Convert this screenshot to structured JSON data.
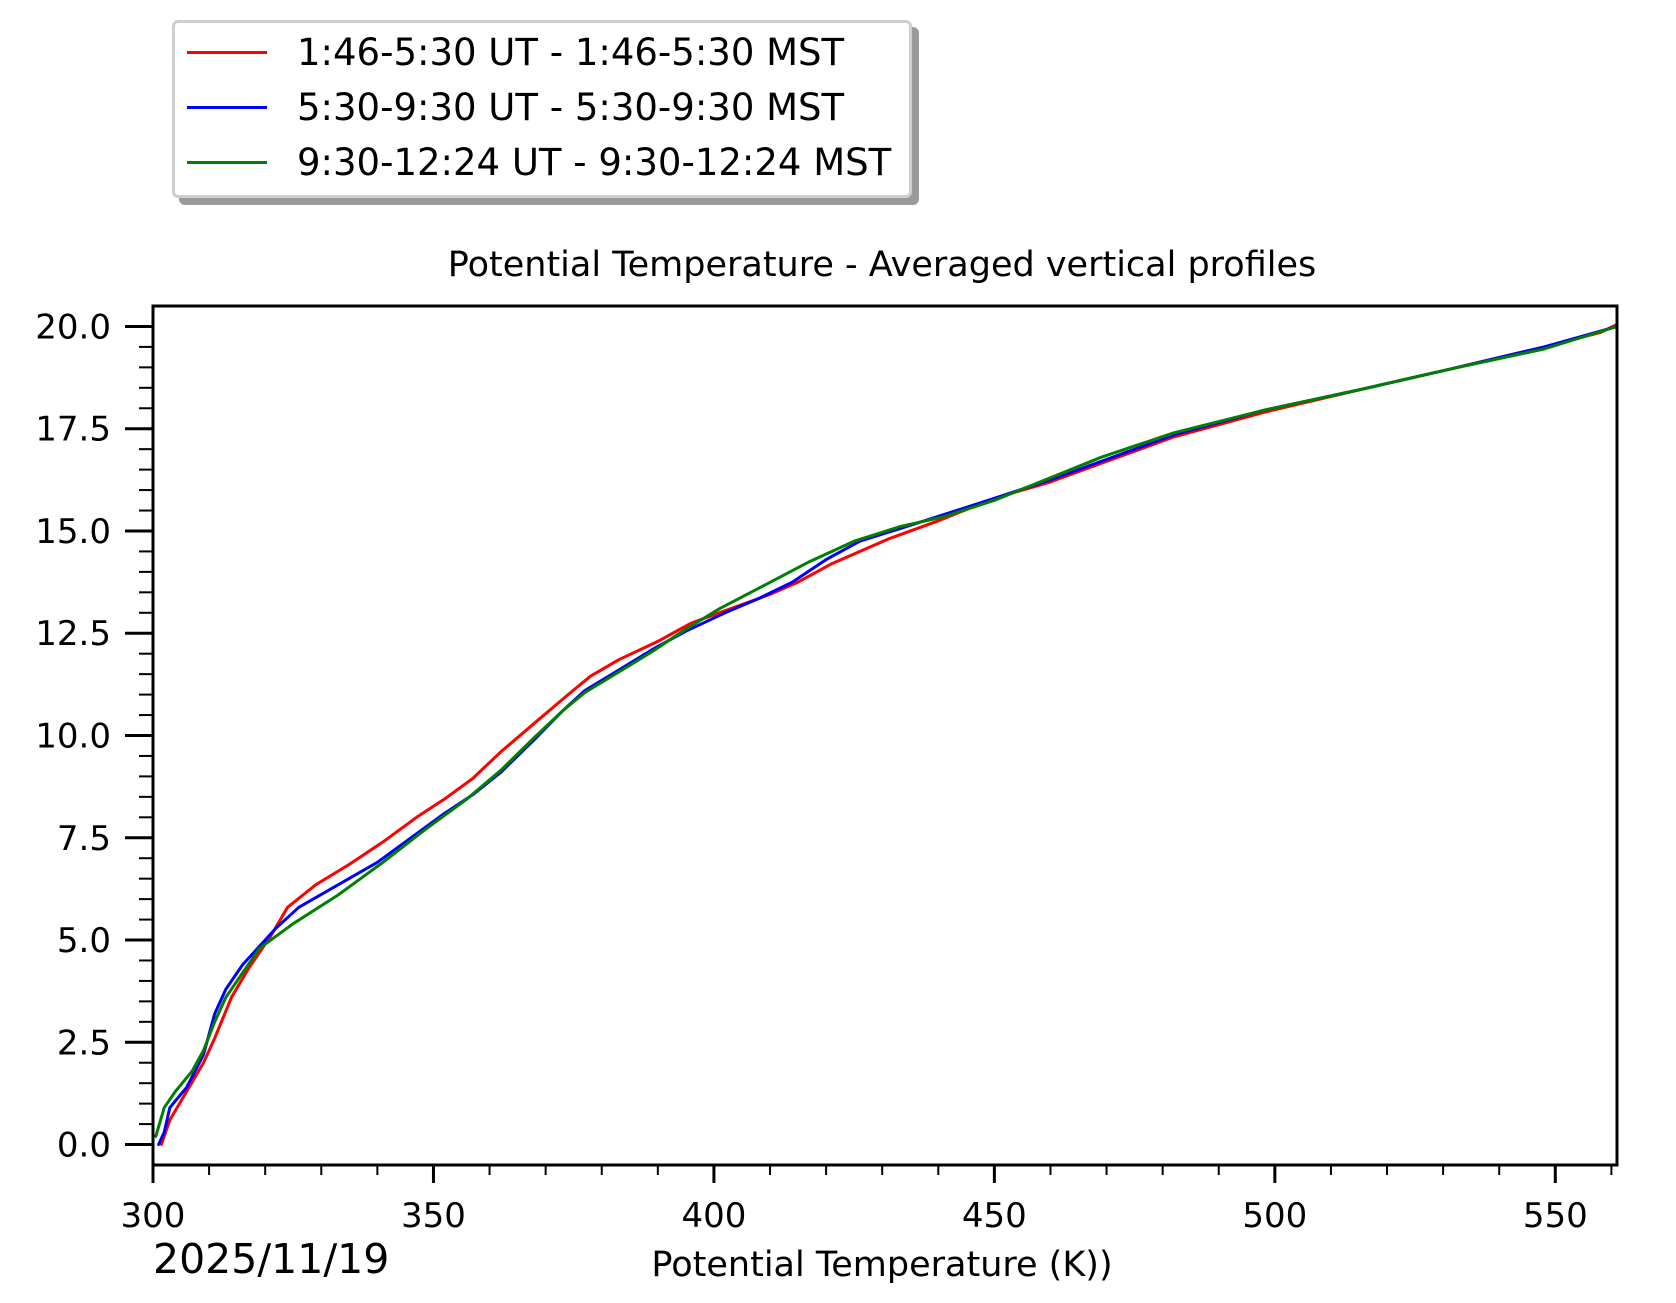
{
  "colors": {
    "series": [
      "#ff0000",
      "#0000ff",
      "#008000"
    ],
    "axes": "#000000",
    "background": "#ffffff"
  },
  "chart_data": {
    "type": "line",
    "title": "Potential Temperature - Averaged vertical profiles",
    "xlabel": "Potential Temperature (K))",
    "ylabel": "",
    "date": "2025/11/19",
    "xlim": [
      300,
      561
    ],
    "ylim": [
      -0.5,
      20.5
    ],
    "xticks": [
      300,
      350,
      400,
      450,
      500,
      550
    ],
    "xtick_labels": [
      "300",
      "350",
      "400",
      "450",
      "500",
      "550"
    ],
    "yticks": [
      0,
      2.5,
      5,
      7.5,
      10,
      12.5,
      15,
      17.5,
      20
    ],
    "ytick_labels": [
      "0.0",
      "2.5",
      "5.0",
      "7.5",
      "10.0",
      "12.5",
      "15.0",
      "17.5",
      "20.0"
    ],
    "grid": false,
    "legend_position": "top-left, above plot",
    "series": [
      {
        "name": "1:46-5:30 UT - 1:46-5:30 MST",
        "color": "#ff0000",
        "x": [
          301.5,
          303,
          306,
          309,
          311,
          314,
          317,
          321,
          324,
          329,
          335,
          341,
          347,
          352,
          357,
          362,
          368,
          374,
          378,
          383,
          390,
          396,
          402,
          410,
          415,
          421,
          431,
          440,
          450,
          460,
          470,
          482,
          498,
          515,
          531,
          548,
          558,
          561
        ],
        "y": [
          0.0,
          0.6,
          1.3,
          2.0,
          2.6,
          3.6,
          4.3,
          5.1,
          5.8,
          6.35,
          6.85,
          7.4,
          8.0,
          8.45,
          8.95,
          9.6,
          10.3,
          11.0,
          11.45,
          11.85,
          12.3,
          12.75,
          13.05,
          13.45,
          13.75,
          14.2,
          14.8,
          15.25,
          15.8,
          16.2,
          16.7,
          17.3,
          17.9,
          18.45,
          18.95,
          19.5,
          19.85,
          20.05
        ]
      },
      {
        "name": "5:30-9:30 UT - 5:30-9:30 MST",
        "color": "#0000ff",
        "x": [
          301,
          302,
          303,
          306,
          309,
          311,
          313,
          316,
          319,
          322,
          326,
          333,
          340,
          347,
          352,
          357,
          362,
          368,
          373,
          377,
          383,
          389,
          395,
          402,
          408,
          414,
          420,
          426,
          433,
          441,
          450,
          460,
          470,
          482,
          498,
          515,
          531,
          548,
          561
        ],
        "y": [
          0.0,
          0.3,
          0.9,
          1.4,
          2.2,
          3.2,
          3.8,
          4.4,
          4.85,
          5.3,
          5.8,
          6.35,
          6.9,
          7.6,
          8.1,
          8.55,
          9.1,
          9.9,
          10.6,
          11.1,
          11.6,
          12.1,
          12.55,
          13.0,
          13.35,
          13.75,
          14.3,
          14.75,
          15.05,
          15.4,
          15.8,
          16.25,
          16.75,
          17.35,
          17.95,
          18.45,
          18.95,
          19.5,
          20.0
        ]
      },
      {
        "name": "9:30-12:24 UT - 9:30-12:24 MST",
        "color": "#008000",
        "x": [
          300.5,
          302,
          304,
          307,
          309,
          311,
          313,
          316,
          319,
          325,
          333,
          341,
          349,
          356,
          362,
          368,
          373,
          377,
          383,
          389,
          395,
          401,
          408,
          417,
          425,
          433,
          441,
          450,
          460,
          469,
          482,
          498,
          515,
          531,
          548,
          561
        ],
        "y": [
          0.2,
          0.9,
          1.3,
          1.8,
          2.3,
          3.0,
          3.6,
          4.2,
          4.8,
          5.4,
          6.1,
          6.9,
          7.75,
          8.45,
          9.15,
          9.95,
          10.6,
          11.05,
          11.55,
          12.05,
          12.6,
          13.1,
          13.6,
          14.25,
          14.75,
          15.1,
          15.35,
          15.75,
          16.3,
          16.8,
          17.4,
          17.95,
          18.45,
          18.95,
          19.45,
          20.0
        ]
      }
    ]
  }
}
